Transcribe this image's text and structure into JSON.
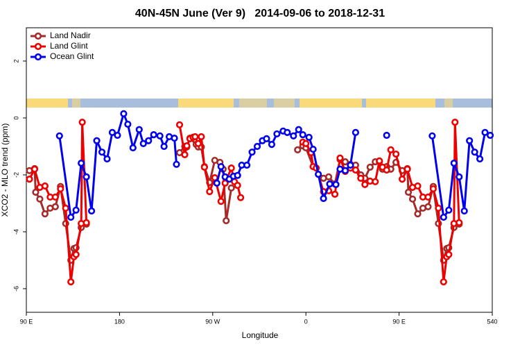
{
  "chart_data": {
    "type": "line",
    "title": "40N-45N June (Ver 9)   2014-09-06 to 2018-12-31",
    "x_label": "Longitude",
    "y_label": "XCO2 - MLO trend (ppm)",
    "xlim": [
      90,
      540
    ],
    "ylim": [
      -6.83,
      3.17
    ],
    "xticks": [
      {
        "value": 90,
        "label": "90 E"
      },
      180,
      {
        "value": 270,
        "label": "90 W"
      },
      {
        "value": 360,
        "label": "0"
      },
      {
        "value": 450,
        "label": "90 E"
      },
      540
    ],
    "yticks": [
      2,
      0,
      -2,
      -4,
      -6
    ],
    "legend": "upper left",
    "grid": false,
    "series": [
      {
        "name": "Land Nadir",
        "color": "#a52a2a",
        "x": [
          93,
          98,
          99,
          103,
          108,
          113,
          118,
          123,
          128,
          133,
          136,
          138,
          143,
          148,
          null,
          238,
          243,
          245,
          248,
          254,
          256,
          259,
          262,
          267,
          272,
          277,
          280,
          283,
          288,
          null,
          352,
          357,
          360,
          367,
          377,
          382,
          388,
          393,
          398,
          403,
          408,
          413,
          417,
          422,
          427,
          431,
          434,
          438,
          442,
          447,
          453,
          458,
          459,
          463,
          468,
          473,
          478,
          483,
          488,
          493,
          496,
          498,
          503,
          508
        ],
        "values": [
          -1.85,
          -1.78,
          -2.61,
          -2.85,
          -3.37,
          -3.17,
          -3.12,
          -2.41,
          -3.71,
          -5.0,
          -4.59,
          -4.56,
          -3.85,
          -3.73,
          null,
          -1.22,
          -1.0,
          -1.02,
          -0.71,
          -0.93,
          -1.02,
          -1.02,
          -1.71,
          -2.27,
          -1.49,
          -1.56,
          -1.8,
          -3.61,
          -2.46,
          null,
          -1.12,
          -0.98,
          -1.05,
          -1.71,
          -2.12,
          -2.07,
          -2.32,
          -1.46,
          -1.54,
          -1.63,
          -1.66,
          -2.0,
          -2.12,
          -1.73,
          -1.54,
          -1.54,
          -1.8,
          -1.71,
          -1.8,
          -1.56,
          -1.85,
          -1.78,
          -2.61,
          -2.85,
          -3.37,
          -3.17,
          -3.12,
          -2.41,
          -3.71,
          -5.0,
          -4.59,
          -4.56,
          -3.85,
          -3.73
        ]
      },
      {
        "name": "Land Glint",
        "color": "#ee0000",
        "x": [
          93,
          98,
          103,
          108,
          113,
          118,
          123,
          128,
          133,
          136,
          138,
          143,
          144,
          148,
          null,
          238,
          243,
          245,
          248,
          251,
          253,
          256,
          259,
          262,
          267,
          272,
          278,
          282,
          288,
          291,
          294,
          297,
          null,
          357,
          360,
          365,
          367,
          370,
          377,
          382,
          388,
          393,
          398,
          403,
          408,
          413,
          417,
          422,
          427,
          431,
          434,
          438,
          442,
          447,
          453,
          458,
          463,
          468,
          473,
          478,
          483,
          488,
          493,
          496,
          498,
          503,
          504,
          508
        ],
        "values": [
          -2.15,
          -1.8,
          -2.44,
          -2.39,
          -2.78,
          -2.78,
          -2.49,
          -3.17,
          -5.76,
          -4.88,
          -4.8,
          -3.71,
          -0.15,
          -3.68,
          null,
          -0.24,
          -1.29,
          -0.98,
          -0.73,
          -0.68,
          -0.66,
          -0.9,
          -0.66,
          -1.73,
          -2.59,
          -2.1,
          -2.93,
          -2.29,
          -1.76,
          -2.24,
          -2.37,
          -2.8,
          null,
          -0.85,
          -0.9,
          -1.22,
          -1.71,
          -1.76,
          -2.59,
          -2.56,
          -2.68,
          -1.41,
          -1.88,
          -1.76,
          -1.83,
          -2.12,
          -2.34,
          -2.22,
          -2.24,
          -1.51,
          -1.73,
          -1.83,
          -1.12,
          -1.27,
          -2.15,
          -1.8,
          -2.44,
          -2.39,
          -2.78,
          -2.78,
          -2.49,
          -3.17,
          -5.76,
          -4.88,
          -4.8,
          -3.71,
          -0.15,
          -3.68
        ]
      },
      {
        "name": "Ocean Glint",
        "color": "#0000ee",
        "x": [
          122,
          133,
          138,
          143,
          148,
          153,
          158,
          163,
          168,
          173,
          178,
          184,
          188,
          193,
          199,
          203,
          208,
          213,
          219,
          223,
          228,
          233,
          235,
          null,
          274,
          278,
          282,
          286,
          290,
          294,
          298,
          303,
          308,
          313,
          318,
          322,
          327,
          332,
          338,
          342,
          348,
          353,
          357,
          363,
          367,
          372,
          377,
          383,
          389,
          393,
          398,
          403,
          408,
          null,
          438,
          null,
          482,
          493,
          498,
          503,
          508,
          513,
          518,
          523,
          528,
          533,
          538
        ],
        "values": [
          -0.63,
          -3.49,
          -3.24,
          -1.59,
          -2.07,
          -3.27,
          -0.8,
          -1.2,
          -1.44,
          -0.51,
          -0.61,
          0.15,
          -0.22,
          -1.05,
          -0.41,
          -0.9,
          -0.8,
          -0.59,
          -0.63,
          -1.0,
          -0.66,
          -0.71,
          -1.63,
          null,
          -2.29,
          -1.71,
          -2.07,
          -2.15,
          -2.05,
          -2.02,
          -1.66,
          -1.66,
          -1.2,
          -1.0,
          -0.8,
          -0.73,
          -0.93,
          -0.56,
          -0.46,
          -0.51,
          -0.63,
          -0.41,
          -0.59,
          -0.68,
          -1.1,
          -1.98,
          -2.83,
          -2.32,
          -2.34,
          -1.8,
          -1.85,
          -1.66,
          -0.51,
          null,
          -0.61,
          null,
          -0.63,
          -3.49,
          -3.24,
          -1.59,
          -2.07,
          -3.27,
          -0.8,
          -1.2,
          -1.44,
          -0.51,
          -0.61
        ]
      }
    ]
  }
}
